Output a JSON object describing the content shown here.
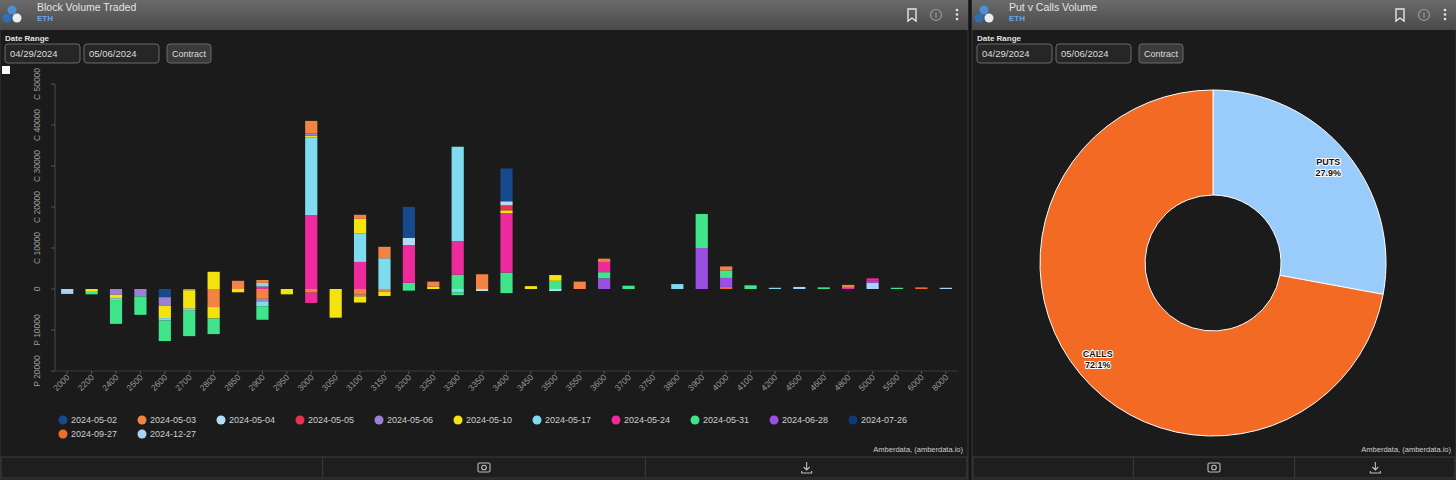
{
  "chart_data": [
    {
      "type": "bar",
      "title": "Block Volume Traded",
      "subtitle": "ETH",
      "annotations": [
        "Date Range",
        "04/29/2024",
        "05/06/2024",
        "Contract",
        "Amberdata, (amberdata.io)"
      ],
      "categories": [
        "2000",
        "2200",
        "2400",
        "2500",
        "2600",
        "2700",
        "2800",
        "2850",
        "2900",
        "2950",
        "3000",
        "3050",
        "3100",
        "3150",
        "3200",
        "3250",
        "3300",
        "3350",
        "3400",
        "3450",
        "3500",
        "3550",
        "3600",
        "3700",
        "3750",
        "3800",
        "3900",
        "4000",
        "4100",
        "4200",
        "4500",
        "4600",
        "4800",
        "5000",
        "5500",
        "6000",
        "8000"
      ],
      "series": [
        {
          "name": "2024-05-02",
          "color": "#164a8c",
          "values": [
            0,
            0,
            0,
            0,
            0,
            0,
            0,
            0,
            0,
            0,
            0,
            0,
            0,
            0,
            7500,
            0,
            0,
            0,
            8000,
            0,
            0,
            0,
            0,
            0,
            0,
            0,
            0,
            0,
            0,
            0,
            0,
            0,
            0,
            0,
            0,
            0,
            0
          ],
          "put_values": [
            0,
            0,
            0,
            0,
            -2000,
            0,
            0,
            0,
            0,
            0,
            0,
            0,
            0,
            0,
            0,
            0,
            0,
            0,
            0,
            0,
            0,
            0,
            0,
            0,
            0,
            0,
            0,
            0,
            0,
            0,
            0,
            0,
            0,
            0,
            0,
            0,
            0
          ]
        },
        {
          "name": "2024-05-03",
          "color": "#f28343",
          "values": [
            0,
            0,
            0,
            0,
            0,
            0,
            0,
            2000,
            700,
            0,
            3100,
            0,
            1000,
            2800,
            0,
            1200,
            0,
            3600,
            0,
            0,
            0,
            1800,
            800,
            0,
            0,
            0,
            0,
            1000,
            0,
            0,
            0,
            0,
            700,
            0,
            0,
            0,
            0
          ],
          "put_values": [
            0,
            0,
            0,
            0,
            0,
            0,
            -4400,
            0,
            -2400,
            0,
            -900,
            0,
            -1400,
            -700,
            0,
            0,
            0,
            0,
            0,
            0,
            0,
            0,
            0,
            0,
            0,
            0,
            0,
            0,
            0,
            0,
            0,
            0,
            0,
            0,
            0,
            0,
            0
          ]
        },
        {
          "name": "2024-05-04",
          "color": "#b5dcf7",
          "values": [
            0,
            0,
            0,
            0,
            0,
            0,
            0,
            0,
            0,
            0,
            0,
            0,
            0,
            0,
            1800,
            0,
            0,
            0,
            1000,
            0,
            0,
            0,
            0,
            0,
            0,
            0,
            0,
            0,
            0,
            0,
            0,
            0,
            0,
            0,
            0,
            0,
            0
          ],
          "put_values": [
            0,
            0,
            0,
            0,
            0,
            0,
            0,
            0,
            0,
            0,
            0,
            0,
            0,
            0,
            0,
            0,
            0,
            -500,
            0,
            0,
            -500,
            0,
            0,
            0,
            0,
            0,
            0,
            0,
            0,
            0,
            0,
            0,
            0,
            0,
            0,
            0,
            0
          ]
        },
        {
          "name": "2024-05-05",
          "color": "#e8304f",
          "values": [
            0,
            0,
            0,
            0,
            0,
            0,
            0,
            0,
            0,
            0,
            0,
            0,
            0,
            0,
            0,
            0,
            0,
            0,
            1200,
            0,
            0,
            0,
            0,
            0,
            0,
            0,
            0,
            0,
            0,
            0,
            0,
            0,
            0,
            0,
            0,
            0,
            0
          ],
          "put_values": [
            0,
            0,
            0,
            0,
            0,
            0,
            0,
            0,
            0,
            0,
            0,
            0,
            0,
            0,
            0,
            0,
            0,
            0,
            0,
            0,
            0,
            0,
            0,
            0,
            0,
            0,
            0,
            0,
            0,
            0,
            0,
            0,
            0,
            0,
            0,
            0,
            0
          ]
        },
        {
          "name": "2024-05-06",
          "color": "#9c7fd6",
          "values": [
            0,
            0,
            0,
            0,
            0,
            0,
            0,
            0,
            0,
            0,
            500,
            0,
            0,
            0,
            0,
            0,
            0,
            0,
            0,
            0,
            0,
            0,
            0,
            0,
            0,
            0,
            0,
            0,
            0,
            0,
            0,
            0,
            0,
            0,
            0,
            0,
            0
          ],
          "put_values": [
            0,
            0,
            -1400,
            -1800,
            -2100,
            -300,
            0,
            0,
            -600,
            0,
            0,
            0,
            -400,
            0,
            0,
            0,
            0,
            0,
            0,
            0,
            0,
            0,
            0,
            0,
            0,
            0,
            0,
            0,
            0,
            0,
            0,
            0,
            0,
            0,
            0,
            0,
            0
          ]
        },
        {
          "name": "2024-05-10",
          "color": "#f2e40c",
          "values": [
            0,
            0,
            0,
            0,
            0,
            0,
            4200,
            0,
            0,
            0,
            400,
            0,
            3500,
            0,
            0,
            600,
            0,
            0,
            700,
            700,
            1400,
            0,
            0,
            0,
            0,
            0,
            0,
            0,
            0,
            0,
            0,
            0,
            0,
            0,
            0,
            0,
            0
          ],
          "put_values": [
            0,
            -700,
            -900,
            0,
            -3000,
            -4500,
            -2800,
            -800,
            0,
            -1300,
            0,
            -7000,
            -1500,
            -1000,
            0,
            0,
            0,
            0,
            0,
            0,
            0,
            0,
            0,
            0,
            0,
            0,
            0,
            0,
            0,
            0,
            0,
            0,
            0,
            0,
            0,
            0,
            0
          ]
        },
        {
          "name": "2024-05-17",
          "color": "#7fdcef",
          "values": [
            0,
            0,
            0,
            0,
            0,
            0,
            0,
            0,
            900,
            0,
            19000,
            0,
            7000,
            7500,
            0,
            0,
            23000,
            0,
            0,
            0,
            0,
            0,
            0,
            0,
            0,
            1200,
            0,
            0,
            0,
            300,
            0,
            0,
            0,
            0,
            0,
            0,
            0
          ],
          "put_values": [
            0,
            0,
            -400,
            0,
            -600,
            -500,
            0,
            0,
            -1200,
            0,
            0,
            0,
            0,
            0,
            0,
            0,
            -800,
            0,
            0,
            0,
            0,
            0,
            0,
            0,
            0,
            0,
            0,
            0,
            0,
            0,
            0,
            0,
            0,
            0,
            0,
            0,
            0
          ]
        },
        {
          "name": "2024-05-24",
          "color": "#ee2a9c",
          "values": [
            0,
            0,
            0,
            0,
            0,
            0,
            0,
            0,
            600,
            0,
            18000,
            0,
            6600,
            0,
            9200,
            0,
            8200,
            0,
            14500,
            0,
            0,
            0,
            2500,
            0,
            0,
            0,
            0,
            0,
            0,
            0,
            0,
            0,
            300,
            600,
            0,
            0,
            0
          ],
          "put_values": [
            0,
            0,
            0,
            0,
            0,
            0,
            0,
            0,
            0,
            0,
            -2500,
            0,
            0,
            0,
            0,
            0,
            0,
            0,
            0,
            0,
            0,
            0,
            0,
            0,
            0,
            0,
            0,
            0,
            0,
            0,
            0,
            0,
            0,
            0,
            0,
            0,
            0
          ]
        },
        {
          "name": "2024-05-31",
          "color": "#40e58b",
          "values": [
            0,
            0,
            0,
            0,
            0,
            0,
            0,
            0,
            0,
            0,
            0,
            0,
            0,
            0,
            1500,
            0,
            3500,
            0,
            4000,
            0,
            2000,
            0,
            1500,
            800,
            0,
            0,
            8300,
            1800,
            900,
            0,
            0,
            400,
            0,
            0,
            300,
            0,
            0
          ],
          "put_values": [
            0,
            -600,
            -5800,
            -4500,
            -5000,
            -6200,
            -3800,
            0,
            -3300,
            0,
            0,
            0,
            0,
            0,
            -400,
            0,
            -700,
            0,
            -1000,
            0,
            0,
            0,
            0,
            0,
            0,
            0,
            0,
            0,
            0,
            0,
            0,
            0,
            0,
            0,
            0,
            0,
            0
          ]
        },
        {
          "name": "2024-06-28",
          "color": "#9a4ee2",
          "values": [
            0,
            0,
            0,
            0,
            0,
            0,
            0,
            0,
            0,
            0,
            0,
            0,
            0,
            0,
            0,
            0,
            0,
            0,
            0,
            0,
            0,
            0,
            2600,
            0,
            0,
            0,
            10000,
            2200,
            0,
            0,
            0,
            0,
            0,
            500,
            0,
            0,
            0
          ],
          "put_values": [
            0,
            0,
            0,
            0,
            0,
            0,
            0,
            0,
            0,
            0,
            0,
            0,
            0,
            0,
            0,
            0,
            0,
            0,
            0,
            0,
            0,
            0,
            0,
            0,
            0,
            0,
            0,
            0,
            0,
            0,
            0,
            0,
            0,
            0,
            0,
            0,
            0
          ]
        },
        {
          "name": "2024-07-26",
          "color": "#0e3b78",
          "values": [
            0,
            0,
            0,
            0,
            0,
            0,
            0,
            0,
            0,
            0,
            0,
            0,
            0,
            0,
            0,
            0,
            0,
            0,
            0,
            0,
            0,
            0,
            0,
            0,
            0,
            0,
            0,
            0,
            0,
            0,
            0,
            0,
            0,
            0,
            0,
            0,
            0
          ],
          "put_values": [
            0,
            0,
            0,
            0,
            0,
            0,
            0,
            0,
            0,
            0,
            0,
            0,
            0,
            0,
            0,
            0,
            0,
            0,
            0,
            0,
            0,
            0,
            0,
            0,
            0,
            0,
            0,
            0,
            0,
            0,
            0,
            0,
            0,
            0,
            0,
            0,
            0
          ]
        },
        {
          "name": "2024-09-27",
          "color": "#f26b2b",
          "values": [
            0,
            0,
            0,
            0,
            0,
            0,
            0,
            0,
            0,
            0,
            0,
            0,
            0,
            0,
            0,
            0,
            0,
            0,
            0,
            0,
            0,
            0,
            0,
            0,
            0,
            0,
            0,
            500,
            0,
            0,
            0,
            0,
            0,
            0,
            0,
            400,
            0
          ],
          "put_values": [
            0,
            0,
            0,
            0,
            0,
            0,
            0,
            0,
            0,
            0,
            0,
            0,
            0,
            0,
            0,
            0,
            0,
            0,
            0,
            0,
            0,
            0,
            0,
            0,
            0,
            0,
            0,
            0,
            0,
            0,
            0,
            0,
            0,
            0,
            0,
            0,
            0
          ]
        },
        {
          "name": "2024-12-27",
          "color": "#a6d3f8",
          "values": [
            0,
            0,
            0,
            0,
            0,
            0,
            0,
            0,
            0,
            0,
            0,
            0,
            0,
            0,
            0,
            0,
            0,
            0,
            0,
            0,
            0,
            0,
            0,
            0,
            0,
            0,
            0,
            0,
            0,
            0,
            500,
            0,
            0,
            1500,
            0,
            0,
            300
          ],
          "put_values": [
            -1200,
            0,
            0,
            0,
            0,
            0,
            0,
            0,
            0,
            0,
            0,
            0,
            0,
            0,
            0,
            0,
            0,
            0,
            0,
            0,
            0,
            0,
            0,
            0,
            0,
            0,
            0,
            0,
            0,
            0,
            0,
            0,
            0,
            0,
            0,
            0,
            0
          ]
        }
      ],
      "ylim": [
        -20000,
        50000
      ],
      "yticks": [
        {
          "value": -20000,
          "label": "P 20000"
        },
        {
          "value": -10000,
          "label": "P 10000"
        },
        0,
        {
          "value": 10000,
          "label": "C 10000"
        },
        {
          "value": 20000,
          "label": "C 20000"
        },
        {
          "value": 30000,
          "label": "C 30000"
        },
        {
          "value": 40000,
          "label": "C 40000"
        },
        {
          "value": 50000,
          "label": "C 50000"
        }
      ],
      "stacked": true,
      "legend": "bottom"
    },
    {
      "type": "pie",
      "title": "Put v Calls Volume",
      "subtitle": "ETH",
      "annotations": [
        "Date Range",
        "04/29/2024",
        "05/06/2024",
        "Contract",
        "Amberdata, (amberdata.io)"
      ],
      "categories": [
        "PUTS",
        "CALLS"
      ],
      "values": [
        27.9,
        72.1
      ],
      "value_labels": [
        "27.9%",
        "72.1%"
      ],
      "colors": [
        "#99ccfa",
        "#f26a24"
      ],
      "data_labels": true
    }
  ]
}
